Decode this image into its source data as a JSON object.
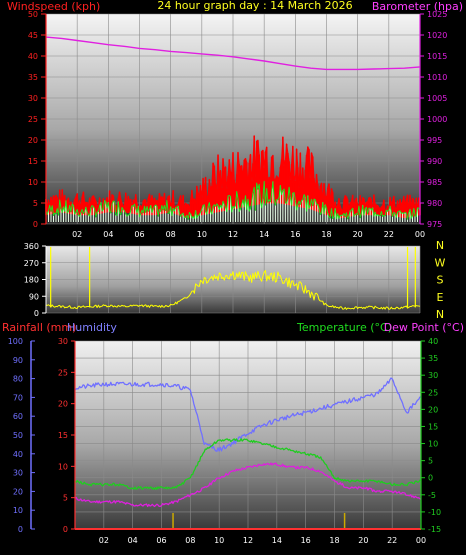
{
  "header": {
    "title": "24 hour graph day : 14 March 2026"
  },
  "colors": {
    "wind_label": "#ff2020",
    "wind_gust": "#ff0000",
    "wind_avg_green": "#20e020",
    "wind_avg_white": "#e8ffe8",
    "baro": "#e020e0",
    "wind_dir": "#ffff00",
    "rain": "#ff3030",
    "humidity": "#7070ff",
    "temp": "#20cc20",
    "dewpoint": "#dd20dd",
    "rain_tick": "#ccaa00",
    "axis_text": "#ffffff"
  },
  "chart_data": [
    {
      "type": "line",
      "name": "wind-barometer",
      "title": "24 hour graph day : 14 March 2026",
      "y_left_label": "Windspeed (kph)",
      "y_right_label": "Barometer (hpa)",
      "x_ticks": [
        "02",
        "04",
        "06",
        "08",
        "10",
        "12",
        "14",
        "16",
        "18",
        "20",
        "22",
        "00"
      ],
      "y_left_ticks": [
        0,
        5,
        10,
        15,
        20,
        25,
        30,
        35,
        40,
        45,
        50
      ],
      "y_left_range": [
        0,
        50
      ],
      "y_right_ticks": [
        975,
        980,
        985,
        990,
        995,
        1000,
        1005,
        1010,
        1015,
        1020,
        1025
      ],
      "y_right_range": [
        975,
        1025
      ],
      "grid": true,
      "series": [
        {
          "name": "Barometer",
          "axis": "right",
          "x": [
            0,
            1,
            2,
            3,
            4,
            5,
            6,
            7,
            8,
            9,
            10,
            11,
            12,
            13,
            14,
            15,
            16,
            17,
            18,
            19,
            20,
            21,
            22,
            23,
            24
          ],
          "values": [
            1019.5,
            1019.2,
            1018.7,
            1018.2,
            1017.7,
            1017.3,
            1016.8,
            1016.5,
            1016.1,
            1015.8,
            1015.5,
            1015.2,
            1014.8,
            1014.3,
            1013.8,
            1013.2,
            1012.6,
            1012.1,
            1011.8,
            1011.8,
            1011.8,
            1011.9,
            1012.0,
            1012.1,
            1012.4
          ]
        },
        {
          "name": "Wind gust",
          "axis": "left",
          "x": [
            0,
            1,
            2,
            3,
            4,
            5,
            6,
            7,
            8,
            9,
            10,
            11,
            12,
            13,
            14,
            15,
            16,
            17,
            18,
            19,
            20,
            21,
            22,
            23,
            24
          ],
          "values": [
            6,
            6,
            6,
            5,
            6,
            6,
            6,
            5,
            6,
            5,
            8,
            12,
            13,
            15,
            16,
            16,
            15,
            13,
            8,
            5,
            5,
            5,
            5,
            5,
            5
          ]
        },
        {
          "name": "Wind average",
          "axis": "left",
          "x": [
            0,
            1,
            2,
            3,
            4,
            5,
            6,
            7,
            8,
            9,
            10,
            11,
            12,
            13,
            14,
            15,
            16,
            17,
            18,
            19,
            20,
            21,
            22,
            23,
            24
          ],
          "values": [
            3,
            4,
            3,
            3,
            4,
            4,
            3,
            3,
            4,
            2,
            3,
            4,
            5,
            6,
            7,
            7,
            6,
            5,
            3,
            2,
            3,
            3,
            3,
            2,
            3
          ]
        }
      ]
    },
    {
      "type": "line",
      "name": "wind-direction",
      "x_ticks": [
        "02",
        "04",
        "06",
        "08",
        "10",
        "12",
        "14",
        "16",
        "18",
        "20",
        "22",
        "00"
      ],
      "y_left_ticks": [
        0,
        90,
        180,
        270,
        360
      ],
      "y_range": [
        0,
        360
      ],
      "compass_labels": [
        "N",
        "W",
        "S",
        "E",
        "N"
      ],
      "series": [
        {
          "name": "Wind direction",
          "x": [
            0,
            1,
            2,
            3,
            4,
            5,
            6,
            7,
            8,
            9,
            10,
            11,
            12,
            13,
            14,
            15,
            16,
            17,
            18,
            19,
            20,
            21,
            22,
            23,
            24
          ],
          "values": [
            40,
            35,
            30,
            35,
            40,
            35,
            40,
            35,
            40,
            80,
            180,
            200,
            210,
            190,
            200,
            190,
            150,
            110,
            40,
            25,
            30,
            30,
            25,
            30,
            40
          ]
        }
      ]
    },
    {
      "type": "line",
      "name": "rain-humidity-temperature",
      "left_labels": [
        "Rainfall (mm)",
        "Humidity"
      ],
      "right_labels": [
        "Temperature (°C)",
        "Dew Point (°C)"
      ],
      "x_ticks": [
        "02",
        "04",
        "06",
        "08",
        "10",
        "12",
        "14",
        "16",
        "18",
        "20",
        "22",
        "00"
      ],
      "humidity_ticks": [
        0,
        10,
        20,
        30,
        40,
        50,
        60,
        70,
        80,
        90,
        100
      ],
      "humidity_range": [
        0,
        100
      ],
      "rain_ticks": [
        0,
        5,
        10,
        15,
        20,
        25,
        30
      ],
      "rain_range": [
        0,
        30
      ],
      "temp_ticks": [
        -15,
        -10,
        -5,
        0,
        5,
        10,
        15,
        20,
        25,
        30,
        35,
        40
      ],
      "temp_range": [
        -15,
        40
      ],
      "grid": true,
      "series": [
        {
          "name": "Humidity",
          "axis": "humidity",
          "x": [
            0,
            1,
            2,
            3,
            4,
            5,
            6,
            7,
            8,
            9,
            10,
            11,
            12,
            13,
            14,
            15,
            16,
            17,
            18,
            19,
            20,
            21,
            22,
            23,
            24
          ],
          "values": [
            75,
            76,
            77,
            77,
            77,
            77,
            77,
            76,
            74,
            45,
            42,
            46,
            51,
            55,
            58,
            60,
            62,
            64,
            66,
            68,
            70,
            72,
            80,
            62,
            70
          ]
        },
        {
          "name": "Temperature",
          "axis": "temp",
          "x": [
            0,
            1,
            2,
            3,
            4,
            5,
            6,
            7,
            8,
            9,
            10,
            11,
            12,
            13,
            14,
            15,
            16,
            17,
            18,
            19,
            20,
            21,
            22,
            23,
            24
          ],
          "values": [
            -1,
            -2,
            -2,
            -2,
            -3,
            -3,
            -3,
            -3,
            0,
            8,
            11,
            11,
            11,
            10,
            9,
            8,
            7,
            6,
            0,
            -1,
            -1,
            -1,
            -2,
            -2,
            -1
          ]
        },
        {
          "name": "Dew Point",
          "axis": "temp",
          "x": [
            0,
            1,
            2,
            3,
            4,
            5,
            6,
            7,
            8,
            9,
            10,
            11,
            12,
            13,
            14,
            15,
            16,
            17,
            18,
            19,
            20,
            21,
            22,
            23,
            24
          ],
          "values": [
            -6,
            -7,
            -7,
            -7,
            -8,
            -8,
            -8,
            -7,
            -5,
            -3,
            0,
            2,
            3,
            4,
            4,
            3,
            3,
            2,
            -1,
            -3,
            -3,
            -4,
            -4,
            -5,
            -6
          ]
        },
        {
          "name": "Rainfall",
          "axis": "rain",
          "x": [
            0,
            1,
            2,
            3,
            4,
            5,
            6,
            7,
            8,
            9,
            10,
            11,
            12,
            13,
            14,
            15,
            16,
            17,
            18,
            19,
            20,
            21,
            22,
            23,
            24
          ],
          "values": [
            0,
            0,
            0,
            0,
            0,
            0,
            0,
            0,
            0,
            0,
            0,
            0,
            0,
            0,
            0,
            0,
            0,
            0,
            0,
            0,
            0,
            0,
            0,
            0,
            0
          ]
        }
      ],
      "rain_tick_hours": [
        6.8,
        18.7
      ]
    }
  ]
}
